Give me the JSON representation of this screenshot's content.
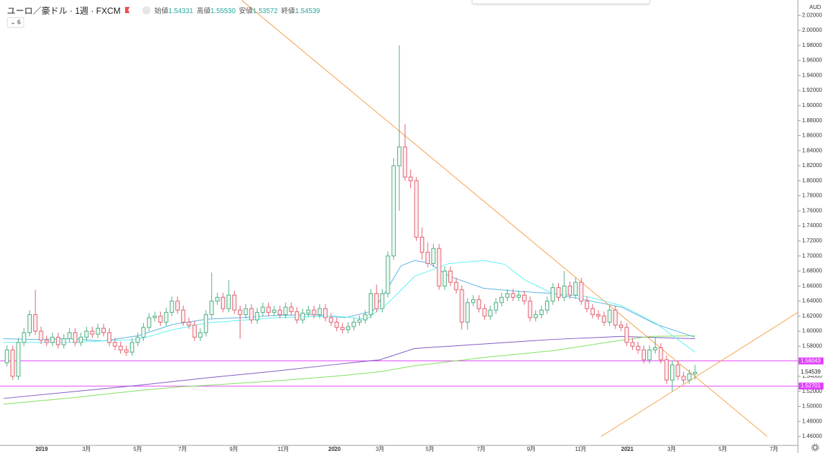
{
  "chart_data": {
    "type": "candlestick",
    "title": "ユーロ／豪ドル · 1週 · FXCM",
    "indicator_count": 6,
    "ohlc_legend": [
      {
        "label": "始値",
        "text": "1.54331"
      },
      {
        "label": "高値",
        "text": "1.55530"
      },
      {
        "label": "安値",
        "text": "1.53572"
      },
      {
        "label": "終値",
        "text": "1.54539"
      }
    ],
    "currency": "AUD",
    "up_color": "#4caf82",
    "down_color": "#e0606e",
    "open": [
      1.558,
      1.575,
      1.54,
      1.585,
      1.598,
      1.622,
      1.6,
      1.588,
      1.585,
      1.592,
      1.582,
      1.59,
      1.598,
      1.585,
      1.592,
      1.6,
      1.596,
      1.604,
      1.598,
      1.585,
      1.58,
      1.575,
      1.572,
      1.585,
      1.592,
      1.605,
      1.618,
      1.62,
      1.612,
      1.625,
      1.64,
      1.628,
      1.612,
      1.608,
      1.592,
      1.598,
      1.622,
      1.64,
      1.645,
      1.63,
      1.648,
      1.628,
      1.622,
      1.63,
      1.615,
      1.625,
      1.632,
      1.625,
      1.628,
      1.622,
      1.632,
      1.626,
      1.615,
      1.624,
      1.628,
      1.622,
      1.63,
      1.618,
      1.612,
      1.605,
      1.602,
      1.606,
      1.612,
      1.615,
      1.622,
      1.65,
      1.63,
      1.65,
      1.7,
      1.82,
      1.845,
      1.805,
      1.8,
      1.725,
      1.705,
      1.69,
      1.71,
      1.66,
      1.68,
      1.665,
      1.655,
      1.612,
      1.638,
      1.642,
      1.63,
      1.62,
      1.628,
      1.638,
      1.645,
      1.65,
      1.645,
      1.648,
      1.64,
      1.618,
      1.622,
      1.628,
      1.64,
      1.658,
      1.645,
      1.66,
      1.648,
      1.665,
      1.64,
      1.63,
      1.622,
      1.62,
      1.612,
      1.628,
      1.608,
      1.605,
      1.585,
      1.58,
      1.575,
      1.562,
      1.575,
      1.578,
      1.562,
      1.535,
      1.555,
      1.54,
      1.535,
      1.54331
    ],
    "high": [
      1.581,
      1.581,
      1.591,
      1.604,
      1.628,
      1.655,
      1.606,
      1.594,
      1.598,
      1.598,
      1.596,
      1.604,
      1.604,
      1.598,
      1.606,
      1.606,
      1.61,
      1.61,
      1.604,
      1.591,
      1.586,
      1.581,
      1.591,
      1.598,
      1.611,
      1.624,
      1.626,
      1.626,
      1.631,
      1.646,
      1.646,
      1.634,
      1.618,
      1.614,
      1.604,
      1.628,
      1.678,
      1.651,
      1.651,
      1.668,
      1.654,
      1.634,
      1.636,
      1.636,
      1.631,
      1.638,
      1.638,
      1.634,
      1.634,
      1.638,
      1.638,
      1.632,
      1.63,
      1.634,
      1.634,
      1.636,
      1.636,
      1.624,
      1.618,
      1.611,
      1.612,
      1.618,
      1.621,
      1.628,
      1.656,
      1.662,
      1.656,
      1.706,
      1.83,
      1.98,
      1.875,
      1.815,
      1.805,
      1.738,
      1.718,
      1.716,
      1.716,
      1.686,
      1.686,
      1.671,
      1.661,
      1.644,
      1.648,
      1.648,
      1.636,
      1.634,
      1.644,
      1.651,
      1.656,
      1.656,
      1.654,
      1.654,
      1.646,
      1.628,
      1.634,
      1.646,
      1.664,
      1.664,
      1.68,
      1.666,
      1.671,
      1.671,
      1.646,
      1.636,
      1.628,
      1.626,
      1.634,
      1.634,
      1.614,
      1.611,
      1.591,
      1.586,
      1.581,
      1.581,
      1.592,
      1.584,
      1.568,
      1.561,
      1.561,
      1.546,
      1.549,
      1.5553
    ],
    "low": [
      1.553,
      1.535,
      1.535,
      1.58,
      1.593,
      1.595,
      1.583,
      1.58,
      1.58,
      1.577,
      1.577,
      1.585,
      1.58,
      1.58,
      1.587,
      1.591,
      1.591,
      1.593,
      1.58,
      1.575,
      1.57,
      1.567,
      1.567,
      1.58,
      1.587,
      1.6,
      1.613,
      1.607,
      1.607,
      1.62,
      1.623,
      1.607,
      1.603,
      1.587,
      1.587,
      1.593,
      1.617,
      1.635,
      1.625,
      1.625,
      1.623,
      1.59,
      1.617,
      1.61,
      1.61,
      1.62,
      1.62,
      1.62,
      1.617,
      1.617,
      1.621,
      1.61,
      1.61,
      1.619,
      1.617,
      1.617,
      1.613,
      1.607,
      1.6,
      1.597,
      1.597,
      1.601,
      1.607,
      1.61,
      1.617,
      1.625,
      1.625,
      1.645,
      1.695,
      1.76,
      1.8,
      1.79,
      1.72,
      1.695,
      1.685,
      1.685,
      1.655,
      1.655,
      1.66,
      1.65,
      1.602,
      1.602,
      1.633,
      1.625,
      1.615,
      1.615,
      1.623,
      1.633,
      1.64,
      1.64,
      1.64,
      1.635,
      1.613,
      1.613,
      1.617,
      1.623,
      1.635,
      1.64,
      1.64,
      1.643,
      1.643,
      1.635,
      1.625,
      1.617,
      1.615,
      1.607,
      1.607,
      1.603,
      1.6,
      1.58,
      1.575,
      1.57,
      1.557,
      1.557,
      1.57,
      1.557,
      1.53,
      1.52,
      1.535,
      1.53,
      1.53,
      1.53572
    ],
    "close": [
      1.575,
      1.54,
      1.585,
      1.598,
      1.622,
      1.6,
      1.588,
      1.585,
      1.592,
      1.582,
      1.59,
      1.598,
      1.585,
      1.592,
      1.6,
      1.596,
      1.604,
      1.598,
      1.585,
      1.58,
      1.575,
      1.572,
      1.585,
      1.592,
      1.605,
      1.618,
      1.62,
      1.612,
      1.625,
      1.64,
      1.628,
      1.612,
      1.608,
      1.592,
      1.598,
      1.622,
      1.64,
      1.645,
      1.63,
      1.648,
      1.628,
      1.622,
      1.63,
      1.615,
      1.625,
      1.632,
      1.625,
      1.628,
      1.622,
      1.632,
      1.626,
      1.615,
      1.624,
      1.628,
      1.622,
      1.63,
      1.618,
      1.612,
      1.605,
      1.602,
      1.606,
      1.612,
      1.615,
      1.622,
      1.65,
      1.63,
      1.65,
      1.7,
      1.82,
      1.845,
      1.805,
      1.8,
      1.725,
      1.705,
      1.69,
      1.71,
      1.66,
      1.68,
      1.665,
      1.655,
      1.612,
      1.638,
      1.642,
      1.63,
      1.62,
      1.628,
      1.638,
      1.645,
      1.65,
      1.645,
      1.648,
      1.64,
      1.618,
      1.622,
      1.628,
      1.64,
      1.658,
      1.645,
      1.66,
      1.648,
      1.665,
      1.64,
      1.63,
      1.622,
      1.62,
      1.612,
      1.628,
      1.608,
      1.605,
      1.585,
      1.58,
      1.575,
      1.562,
      1.575,
      1.578,
      1.562,
      1.535,
      1.555,
      1.54,
      1.535,
      1.54331,
      1.54539
    ],
    "indicators": [
      {
        "color": "#7e57c2",
        "x": [
          -0.6,
          10.9,
          23.1,
          35.2,
          47.4,
          57.6,
          65.6,
          71.7,
          83.8,
          96,
          108.1,
          121
        ],
        "values": [
          1.5106,
          1.519,
          1.528,
          1.538,
          1.547,
          1.5556,
          1.562,
          1.577,
          1.583,
          1.589,
          1.593,
          1.59
        ]
      },
      {
        "color": "#7ee05a",
        "x": [
          -0.6,
          10.9,
          23.1,
          30.4,
          35.2,
          47.4,
          57.6,
          65.6,
          71.7,
          83.8,
          96,
          108.1,
          113,
          121
        ],
        "values": [
          1.503,
          1.511,
          1.521,
          1.526,
          1.528,
          1.534,
          1.54,
          1.546,
          1.554,
          1.565,
          1.574,
          1.588,
          1.593,
          1.594
        ]
      },
      {
        "color": "#5bb0e0",
        "x": [
          -0.6,
          4.9,
          10.9,
          17,
          23.1,
          29.2,
          35.2,
          41.3,
          47.4,
          53.5,
          59.5,
          64.4,
          66.8,
          69.3,
          71.7,
          74.1,
          77.8,
          83.8,
          89.9,
          96,
          102.1,
          108.1,
          114.2,
          121
        ],
        "values": [
          1.59,
          1.589,
          1.59,
          1.587,
          1.594,
          1.609,
          1.616,
          1.618,
          1.621,
          1.622,
          1.618,
          1.627,
          1.655,
          1.687,
          1.694,
          1.691,
          1.673,
          1.657,
          1.653,
          1.65,
          1.641,
          1.632,
          1.609,
          1.592
        ]
      },
      {
        "color": "#5ef0f0",
        "x": [
          -0.6,
          10.9,
          23.1,
          29.2,
          35.2,
          47.4,
          57.6,
          63.2,
          66.8,
          71.7,
          77.8,
          83.8,
          87.5,
          91.1,
          96,
          102.1,
          108.1,
          114.2,
          121
        ],
        "values": [
          1.585,
          1.585,
          1.589,
          1.602,
          1.611,
          1.618,
          1.62,
          1.616,
          1.636,
          1.673,
          1.69,
          1.694,
          1.689,
          1.668,
          1.65,
          1.646,
          1.634,
          1.61,
          1.572
        ]
      }
    ],
    "trend_lines": [
      {
        "color": "#f5a04a",
        "x": [
          41.3,
          133.7
        ],
        "values": [
          2.04,
          1.46
        ]
      },
      {
        "color": "#f5a04a",
        "x": [
          104.5,
          139.1
        ],
        "values": [
          1.46,
          1.625
        ]
      }
    ],
    "levels": [
      {
        "value": 1.56043,
        "color": "#e040fb"
      },
      {
        "value": 1.52701,
        "color": "#e040fb"
      }
    ],
    "xlim": [
      -1.22,
      139.1
    ],
    "xticks": [
      {
        "value": 6.1,
        "label": "2019"
      },
      {
        "value": 14.0,
        "label": "3月"
      },
      {
        "value": 23.0,
        "label": "5月"
      },
      {
        "value": 30.9,
        "label": "7月"
      },
      {
        "value": 39.9,
        "label": "9月"
      },
      {
        "value": 48.6,
        "label": "11月"
      },
      {
        "value": 57.6,
        "label": "2020"
      },
      {
        "value": 65.6,
        "label": "3月"
      },
      {
        "value": 74.4,
        "label": "5月"
      },
      {
        "value": 83.4,
        "label": "7月"
      },
      {
        "value": 92.2,
        "label": "9月"
      },
      {
        "value": 100.9,
        "label": "11月"
      },
      {
        "value": 109.1,
        "label": "2021"
      },
      {
        "value": 116.9,
        "label": "3月"
      },
      {
        "value": 125.9,
        "label": "5月"
      },
      {
        "value": 134.9,
        "label": "7月"
      }
    ],
    "ylim": [
      1.4481,
      2.0404
    ],
    "yticks": [
      {
        "value": 1.46,
        "label": "1.46000"
      },
      {
        "value": 1.48,
        "label": "1.48000"
      },
      {
        "value": 1.5,
        "label": "1.50000"
      },
      {
        "value": 1.52,
        "label": "1.52000"
      },
      {
        "value": 1.54,
        "label": "1.54000"
      },
      {
        "value": 1.56,
        "label": "1.56000"
      },
      {
        "value": 1.58,
        "label": "1.58000"
      },
      {
        "value": 1.6,
        "label": "1.60000"
      },
      {
        "value": 1.62,
        "label": "1.62000"
      },
      {
        "value": 1.64,
        "label": "1.64000"
      },
      {
        "value": 1.66,
        "label": "1.66000"
      },
      {
        "value": 1.68,
        "label": "1.68000"
      },
      {
        "value": 1.7,
        "label": "1.70000"
      },
      {
        "value": 1.72,
        "label": "1.72000"
      },
      {
        "value": 1.74,
        "label": "1.74000"
      },
      {
        "value": 1.76,
        "label": "1.76000"
      },
      {
        "value": 1.78,
        "label": "1.78000"
      },
      {
        "value": 1.8,
        "label": "1.80000"
      },
      {
        "value": 1.82,
        "label": "1.82000"
      },
      {
        "value": 1.84,
        "label": "1.84000"
      },
      {
        "value": 1.86,
        "label": "1.86000"
      },
      {
        "value": 1.88,
        "label": "1.88000"
      },
      {
        "value": 1.9,
        "label": "1.90000"
      },
      {
        "value": 1.92,
        "label": "1.92000"
      },
      {
        "value": 1.94,
        "label": "1.94000"
      },
      {
        "value": 1.96,
        "label": "1.96000"
      },
      {
        "value": 1.98,
        "label": "1.98000"
      },
      {
        "value": 2.0,
        "label": "2.00000"
      },
      {
        "value": 2.02,
        "label": "2.02000"
      }
    ],
    "grid": false
  }
}
